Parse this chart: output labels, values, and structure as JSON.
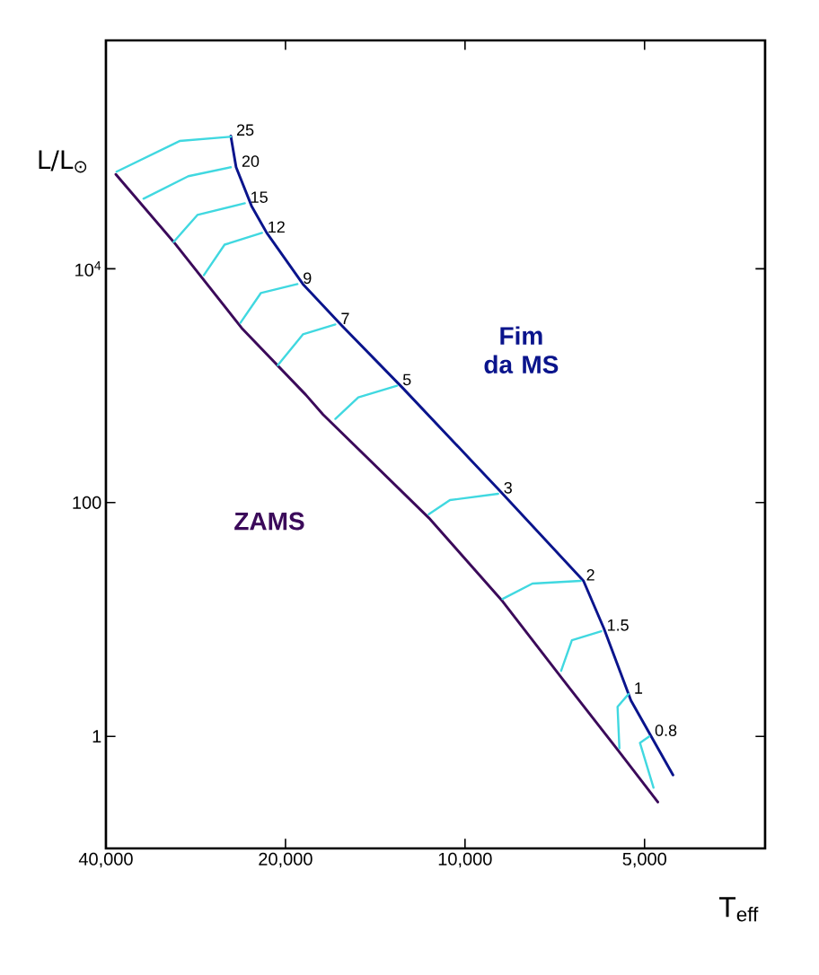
{
  "chart_data": {
    "type": "line",
    "xlabel": "T$_{eff}$",
    "ylabel": "L/L$_{⊙}$",
    "log": "xy",
    "xlim": [
      40000,
      3140
    ],
    "ylim": [
      0.11,
      900000
    ],
    "xticks": [
      {
        "value": 40000,
        "label": "40,000"
      },
      {
        "value": 20000,
        "label": "20,000"
      },
      {
        "value": 10000,
        "label": "10,000"
      },
      {
        "value": 5000,
        "label": "5,000"
      }
    ],
    "yticks": [
      1,
      100,
      {
        "value": 10000,
        "label": "10$^{4}$"
      }
    ],
    "series": [
      {
        "name": "ZAMS",
        "color": "#3b0a5a",
        "x": [
          38500,
          30800,
          23600,
          18500,
          17300,
          11500,
          8650,
          6850,
          5570,
          4750
        ],
        "values": [
          64300,
          17000,
          3050,
          838,
          567,
          74,
          14.3,
          3.05,
          0.79,
          0.274
        ]
      },
      {
        "name": "Fim da MS",
        "color": "#0a148c",
        "x": [
          24700,
          24200,
          22800,
          21500,
          18700,
          16100,
          12700,
          8740,
          6330,
          5850,
          5270,
          4480
        ],
        "values": [
          137000,
          74000,
          34500,
          20300,
          7400,
          3280,
          948,
          126,
          21.4,
          8.38,
          2.03,
          0.467
        ]
      },
      {
        "color": "#40d8e0",
        "x": [
          38400,
          30100,
          24700
        ],
        "values": [
          67700,
          124000,
          135000
        ]
      },
      {
        "color": "#40d8e0",
        "x": [
          34600,
          29100,
          24700
        ],
        "values": [
          39800,
          62000,
          74000
        ]
      },
      {
        "color": "#40d8e0",
        "x": [
          30800,
          28100,
          23400
        ],
        "values": [
          17000,
          28900,
          36400
        ]
      },
      {
        "color": "#40d8e0",
        "x": [
          27400,
          25300,
          21900
        ],
        "values": [
          8840,
          16100,
          20300
        ]
      },
      {
        "color": "#40d8e0",
        "x": [
          23800,
          22000,
          19100
        ],
        "values": [
          3450,
          6200,
          7400
        ]
      },
      {
        "color": "#40d8e0",
        "x": [
          20600,
          18700,
          16500
        ],
        "values": [
          1500,
          2750,
          3340
        ]
      },
      {
        "color": "#40d8e0",
        "x": [
          16500,
          15100,
          13000
        ],
        "values": [
          520,
          795,
          1000
        ]
      },
      {
        "color": "#40d8e0",
        "x": [
          11500,
          10600,
          8800
        ],
        "values": [
          79.4,
          105,
          119
        ]
      },
      {
        "color": "#40d8e0",
        "x": [
          8650,
          7710,
          6400
        ],
        "values": [
          15,
          20.3,
          21.4
        ]
      },
      {
        "color": "#40d8e0",
        "x": [
          6900,
          6620,
          5910
        ],
        "values": [
          3.64,
          6.65,
          7.94
        ]
      },
      {
        "color": "#40d8e0",
        "x": [
          5510,
          5550,
          5320
        ],
        "values": [
          0.79,
          1.79,
          2.3
        ]
      },
      {
        "color": "#40d8e0",
        "x": [
          4830,
          5090,
          4910
        ],
        "values": [
          0.364,
          0.88,
          1
        ]
      }
    ],
    "annotations": [
      {
        "text": "25",
        "x": 24700,
        "y": 137000
      },
      {
        "text": "20",
        "x": 24200,
        "y": 74000
      },
      {
        "text": "15",
        "x": 23400,
        "y": 36400
      },
      {
        "text": "12",
        "x": 21900,
        "y": 20300
      },
      {
        "text": "9",
        "x": 19100,
        "y": 7400
      },
      {
        "text": "7",
        "x": 16500,
        "y": 3340
      },
      {
        "text": "5",
        "x": 13000,
        "y": 1000
      },
      {
        "text": "3",
        "x": 8800,
        "y": 119
      },
      {
        "text": "2",
        "x": 6400,
        "y": 21.4
      },
      {
        "text": "1.5",
        "x": 5910,
        "y": 7.94
      },
      {
        "text": "1",
        "x": 5320,
        "y": 2.3
      },
      {
        "text": "0.8",
        "x": 4910,
        "y": 1
      }
    ]
  }
}
